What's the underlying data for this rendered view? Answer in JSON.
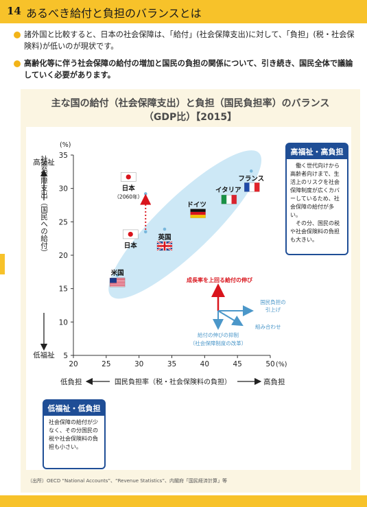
{
  "header": {
    "number": "14",
    "title": "あるべき給付と負担のバランスとは"
  },
  "bullets": [
    "諸外国と比較すると、日本の社会保障は、「給付」(社会保障支出)に対して、「負担」(税・社会保険料)が低いのが現状です。",
    "高齢化等に伴う社会保障の給付の増加と国民の負担の関係について、引き続き、国民全体で議論していく必要があります。"
  ],
  "chart_title_line1": "主な国の給付（社会保障支出）と負担（国民負担率）のバランス",
  "chart_title_line2": "（GDP比）【2015】",
  "high_box": {
    "title": "高福祉・高負担",
    "body": "　働く世代向けから高齢者向けまで、生活上のリスクを社会保障制度が広くカバーしているため、社会保障の給付が多い。\n　その分、国民の税や社会保険料の負担も大きい。"
  },
  "low_box": {
    "title": "低福祉・低負担",
    "body": "社会保障の給付が少なく、その分国民の税や社会保険料の負担も小さい。"
  },
  "source": "（出所）OECD “National Accounts”、“Revenue Statistics”、内閣府「国民経済計算」等",
  "colors": {
    "accent": "#f7c22a",
    "navy": "#1f4e96",
    "blob": "#cde8f6",
    "red": "#d9141c",
    "teal": "#4b97c9"
  },
  "chart_data": {
    "type": "scatter",
    "title": "主な国の給付（社会保障支出）と負担（国民負担率）のバランス（GDP比）【2015】",
    "xlabel": "国民負担率（税・社会保険料の負担）",
    "ylabel": "社会保障支出（国民への給付）",
    "x_unit": "(%)",
    "y_unit": "(%)",
    "xlim": [
      20,
      50
    ],
    "ylim": [
      5,
      35
    ],
    "x_ticks": [
      20,
      25,
      30,
      35,
      40,
      45,
      50
    ],
    "y_ticks": [
      5,
      10,
      15,
      20,
      25,
      30,
      35
    ],
    "x_low_label": "低負担",
    "x_high_label": "高負担",
    "y_low_label": "低福祉",
    "y_high_label": "高福祉",
    "points": [
      {
        "label": "米国",
        "x": 26.7,
        "y": 17.0,
        "flag": "us-flag"
      },
      {
        "label": "日本",
        "x": 31.0,
        "y": 23.5,
        "flag": "japan-flag"
      },
      {
        "label": "日本",
        "sub": "（2060年）",
        "x": 31.0,
        "y": 29.2,
        "flag": "japan-flag"
      },
      {
        "label": "英国",
        "x": 33.9,
        "y": 23.9,
        "flag": "uk-flag"
      },
      {
        "label": "ドイツ",
        "x": 39.4,
        "y": 26.0,
        "flag": "germany-flag"
      },
      {
        "label": "イタリア",
        "x": 43.4,
        "y": 28.4,
        "flag": "italy-flag"
      },
      {
        "label": "フランス",
        "x": 47.1,
        "y": 32.6,
        "flag": "france-flag"
      }
    ],
    "annotations": {
      "up": "成長率を上回る給付の伸び",
      "right": "国民負担の引上げ",
      "diag": "組み合わせ",
      "down": "給付の伸びの抑制（社会保障制度の改革）"
    },
    "grid": false,
    "legend": "none"
  }
}
